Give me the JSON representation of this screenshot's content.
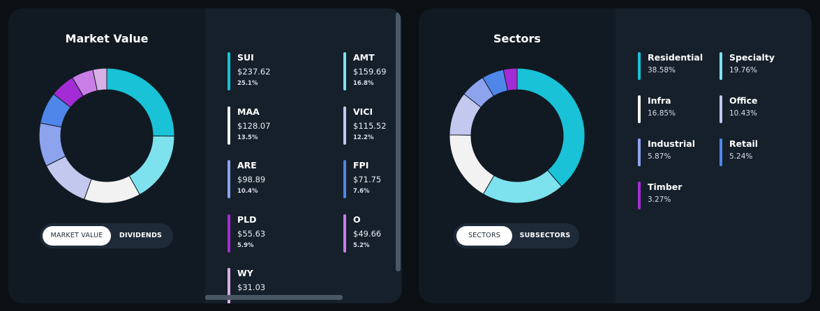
{
  "market_value_card": {
    "title": "Market Value",
    "toggle": {
      "active_label": "MARKET VALUE",
      "other_label": "DIVIDENDS"
    },
    "items": [
      {
        "name": "SUI",
        "value": "$237.62",
        "pct": "25.1%",
        "color": "#19c2d6"
      },
      {
        "name": "AMT",
        "value": "$159.69",
        "pct": "16.8%",
        "color": "#7de2ee"
      },
      {
        "name": "MAA",
        "value": "$128.07",
        "pct": "13.5%",
        "color": "#f2f2f2"
      },
      {
        "name": "VICI",
        "value": "$115.52",
        "pct": "12.2%",
        "color": "#c3c8ee"
      },
      {
        "name": "ARE",
        "value": "$98.89",
        "pct": "10.4%",
        "color": "#8ea3ee"
      },
      {
        "name": "FPI",
        "value": "$71.75",
        "pct": "7.6%",
        "color": "#4f86ea"
      },
      {
        "name": "PLD",
        "value": "$55.63",
        "pct": "5.9%",
        "color": "#a42cd6"
      },
      {
        "name": "O",
        "value": "$49.66",
        "pct": "5.2%",
        "color": "#c87ee6"
      },
      {
        "name": "WY",
        "value": "$31.03",
        "pct": "",
        "color": "#d8b0e6"
      }
    ],
    "donut_fractions": [
      25.1,
      16.8,
      13.5,
      12.2,
      10.4,
      7.6,
      5.9,
      5.2,
      3.3
    ]
  },
  "sectors_card": {
    "title": "Sectors",
    "toggle": {
      "active_label": "SECTORS",
      "other_label": "SUBSECTORS"
    },
    "items": [
      {
        "name": "Residential",
        "pct": "38.58%",
        "color": "#19c2d6"
      },
      {
        "name": "Specialty",
        "pct": "19.76%",
        "color": "#7de2ee"
      },
      {
        "name": "Infra",
        "pct": "16.85%",
        "color": "#f2f2f2"
      },
      {
        "name": "Office",
        "pct": "10.43%",
        "color": "#c3c8ee"
      },
      {
        "name": "Industrial",
        "pct": "5.87%",
        "color": "#8ea3ee"
      },
      {
        "name": "Retail",
        "pct": "5.24%",
        "color": "#4f86ea"
      },
      {
        "name": "Timber",
        "pct": "3.27%",
        "color": "#a42cd6"
      }
    ],
    "donut_fractions": [
      38.58,
      19.76,
      16.85,
      10.43,
      5.87,
      5.24,
      3.27
    ]
  }
}
